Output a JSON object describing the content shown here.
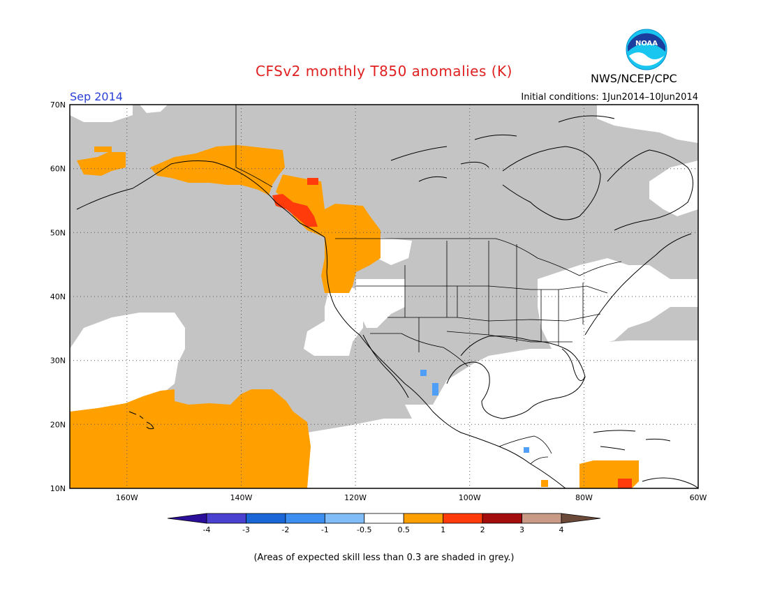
{
  "map": {
    "title": "CFSv2 monthly T850 anomalies (K)",
    "month": "Sep 2014",
    "agency": "NWS/NCEP/CPC",
    "logo_text": "NOAA",
    "initial_conditions": "Initial conditions: 1Jun2014–10Jun2014",
    "footnote": "(Areas of expected skill less than 0.3 are shaded in grey.)",
    "lat_labels": [
      "70N",
      "60N",
      "50N",
      "40N",
      "30N",
      "20N",
      "10N"
    ],
    "lon_labels": [
      "160W",
      "140W",
      "120W",
      "100W",
      "80W",
      "60W"
    ],
    "colors": {
      "grey_low_skill": "#c4c4c4",
      "orange_0_5_to_1": "#ff9f00",
      "red_1_to_2": "#ff3b0b",
      "blue_minus1_to_minus0_5": "#4f9ef8",
      "white_neutral": "#ffffff"
    }
  },
  "colorbar": {
    "labels": [
      "-4",
      "-3",
      "-2",
      "-1",
      "-0.5",
      "0.5",
      "1",
      "2",
      "3",
      "4"
    ],
    "colors": [
      "#2b0e99",
      "#4b41d1",
      "#1a66d6",
      "#3c8ef0",
      "#80bdf8",
      "#ffffff",
      "#ff9f00",
      "#ff3b0b",
      "#a30d0d",
      "#c99b86",
      "#6b4a3a"
    ]
  }
}
